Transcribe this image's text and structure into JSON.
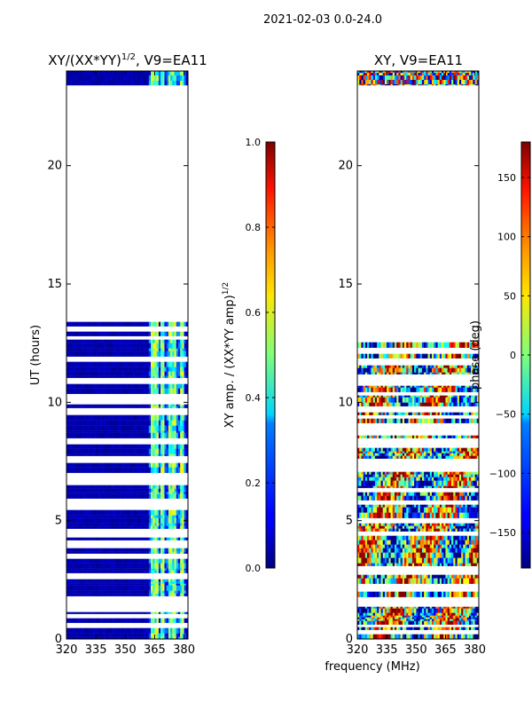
{
  "suptitle": "2021-02-03 0.0-24.0",
  "shared_xlabel": "frequency (MHz)",
  "chart_data": [
    {
      "type": "heatmap",
      "title": "XY/(XX*YY)^(1/2), V9=EA11",
      "title_main": "XY/(XX*YY)",
      "title_exp": "1/2",
      "title_tail": ", V9=EA11",
      "xlabel": "frequency (MHz)",
      "ylabel": "UT (hours)",
      "xlim": [
        320,
        382
      ],
      "ylim": [
        0,
        24
      ],
      "xticks": [
        320,
        335,
        350,
        365,
        380
      ],
      "yticks": [
        0,
        5,
        10,
        15,
        20
      ],
      "colorbar": {
        "label_main": "XY amp. / (XX*YY amp)",
        "label_exp": "1/2",
        "range": [
          0.0,
          1.0
        ],
        "ticks": [
          "0.0",
          "0.2",
          "0.4",
          "0.6",
          "0.8",
          "1.0"
        ],
        "tick_values": [
          0.0,
          0.2,
          0.4,
          0.6,
          0.8,
          1.0
        ],
        "colormap": "jet"
      },
      "data_bands_ut": [
        [
          0,
          13.4
        ],
        [
          23.4,
          24
        ]
      ],
      "bright_channels_mhz": [
        364,
        366,
        369,
        373,
        375,
        379
      ]
    },
    {
      "type": "heatmap",
      "title": "XY, V9=EA11",
      "xlabel": "frequency (MHz)",
      "ylabel": "",
      "xlim": [
        320,
        382
      ],
      "ylim": [
        0,
        24
      ],
      "xticks": [
        320,
        335,
        350,
        365,
        380
      ],
      "yticks": [
        0,
        5,
        10,
        15,
        20
      ],
      "colorbar": {
        "label": "phase (deg)",
        "range": [
          -180,
          180
        ],
        "ticks": [
          "−150",
          "−100",
          "−50",
          "0",
          "50",
          "100",
          "150"
        ],
        "tick_values": [
          -150,
          -100,
          -50,
          0,
          50,
          100,
          150
        ],
        "colormap": "jet"
      },
      "data_bands_ut": [
        [
          0,
          13.4
        ],
        [
          23.4,
          24
        ]
      ]
    }
  ]
}
